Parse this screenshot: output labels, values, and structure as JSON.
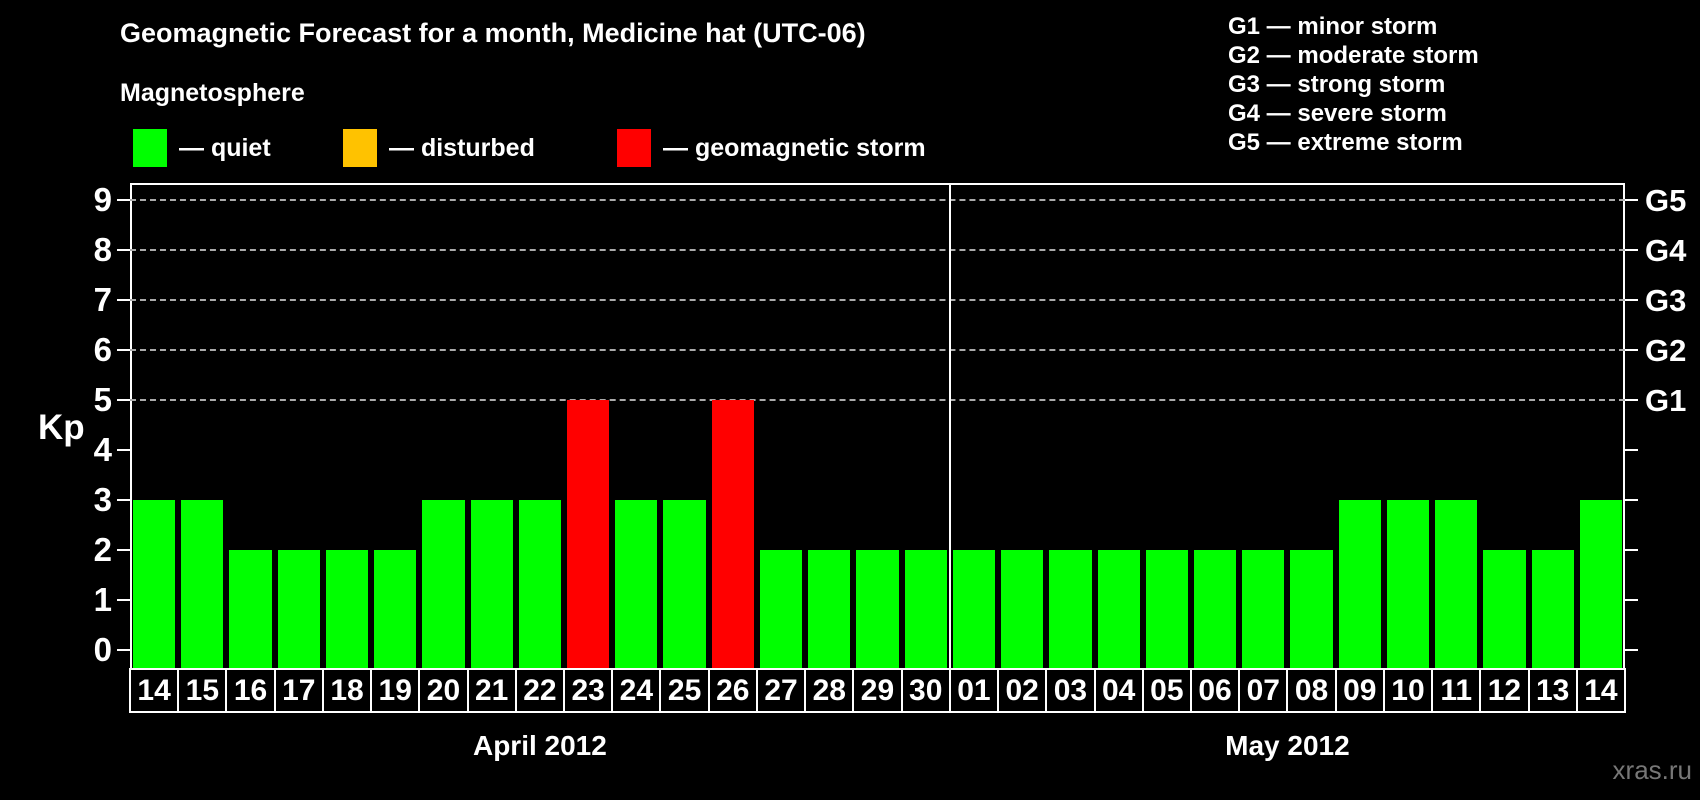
{
  "title": "Geomagnetic Forecast for a month, Medicine hat (UTC-06)",
  "subtitle": "Magnetosphere",
  "legend": {
    "items": [
      {
        "state": "quiet",
        "label": "— quiet"
      },
      {
        "state": "disturbed",
        "label": "— disturbed"
      },
      {
        "state": "storm",
        "label": "— geomagnetic storm"
      }
    ]
  },
  "g_legend": [
    "G1 — minor storm",
    "G2 — moderate storm",
    "G3 — strong storm",
    "G4 — severe storm",
    "G5 — extreme storm"
  ],
  "watermark": "xras.ru",
  "colors": {
    "quiet": "#00ff00",
    "disturbed": "#ffc200",
    "storm": "#ff0000",
    "background": "#000000",
    "text": "#ffffff",
    "grid": "#aaaaaa",
    "watermark": "#777777"
  },
  "chart_data": {
    "type": "bar",
    "ylabel": "Kp",
    "ylim": [
      0,
      9
    ],
    "y_ticks": [
      0,
      1,
      2,
      3,
      4,
      5,
      6,
      7,
      8,
      9
    ],
    "grid_levels": [
      5,
      6,
      7,
      8,
      9
    ],
    "right_axis": [
      {
        "kp": 5,
        "label": "G1"
      },
      {
        "kp": 6,
        "label": "G2"
      },
      {
        "kp": 7,
        "label": "G3"
      },
      {
        "kp": 8,
        "label": "G4"
      },
      {
        "kp": 9,
        "label": "G5"
      }
    ],
    "months": [
      {
        "label": "April 2012",
        "days": [
          {
            "day": "14",
            "kp": 3,
            "state": "quiet"
          },
          {
            "day": "15",
            "kp": 3,
            "state": "quiet"
          },
          {
            "day": "16",
            "kp": 2,
            "state": "quiet"
          },
          {
            "day": "17",
            "kp": 2,
            "state": "quiet"
          },
          {
            "day": "18",
            "kp": 2,
            "state": "quiet"
          },
          {
            "day": "19",
            "kp": 2,
            "state": "quiet"
          },
          {
            "day": "20",
            "kp": 3,
            "state": "quiet"
          },
          {
            "day": "21",
            "kp": 3,
            "state": "quiet"
          },
          {
            "day": "22",
            "kp": 3,
            "state": "quiet"
          },
          {
            "day": "23",
            "kp": 5,
            "state": "storm"
          },
          {
            "day": "24",
            "kp": 3,
            "state": "quiet"
          },
          {
            "day": "25",
            "kp": 3,
            "state": "quiet"
          },
          {
            "day": "26",
            "kp": 5,
            "state": "storm"
          },
          {
            "day": "27",
            "kp": 2,
            "state": "quiet"
          },
          {
            "day": "28",
            "kp": 2,
            "state": "quiet"
          },
          {
            "day": "29",
            "kp": 2,
            "state": "quiet"
          },
          {
            "day": "30",
            "kp": 2,
            "state": "quiet"
          }
        ]
      },
      {
        "label": "May 2012",
        "days": [
          {
            "day": "01",
            "kp": 2,
            "state": "quiet"
          },
          {
            "day": "02",
            "kp": 2,
            "state": "quiet"
          },
          {
            "day": "03",
            "kp": 2,
            "state": "quiet"
          },
          {
            "day": "04",
            "kp": 2,
            "state": "quiet"
          },
          {
            "day": "05",
            "kp": 2,
            "state": "quiet"
          },
          {
            "day": "06",
            "kp": 2,
            "state": "quiet"
          },
          {
            "day": "07",
            "kp": 2,
            "state": "quiet"
          },
          {
            "day": "08",
            "kp": 2,
            "state": "quiet"
          },
          {
            "day": "09",
            "kp": 3,
            "state": "quiet"
          },
          {
            "day": "10",
            "kp": 3,
            "state": "quiet"
          },
          {
            "day": "11",
            "kp": 3,
            "state": "quiet"
          },
          {
            "day": "12",
            "kp": 2,
            "state": "quiet"
          },
          {
            "day": "13",
            "kp": 2,
            "state": "quiet"
          },
          {
            "day": "14",
            "kp": 3,
            "state": "quiet"
          }
        ]
      }
    ]
  }
}
